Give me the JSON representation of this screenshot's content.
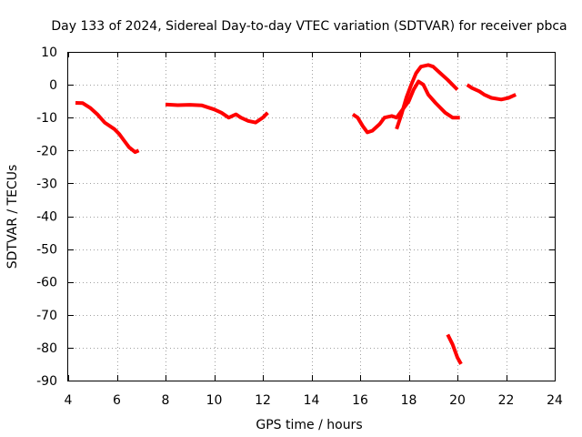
{
  "chart_data": {
    "type": "line",
    "title": "Day 133 of 2024, Sidereal Day-to-day VTEC variation (SDTVAR) for receiver pbca",
    "xlabel": "GPS time / hours",
    "ylabel": "SDTVAR / TECUs",
    "xlim": [
      4,
      24
    ],
    "ylim": [
      -90,
      10
    ],
    "xticks": [
      4,
      6,
      8,
      10,
      12,
      14,
      16,
      18,
      20,
      22,
      24
    ],
    "yticks": [
      10,
      0,
      -10,
      -20,
      -30,
      -40,
      -50,
      -60,
      -70,
      -80,
      -90
    ],
    "grid": true,
    "color": "#ff0000",
    "series": [
      {
        "name": "arc-1",
        "points": [
          [
            4.3,
            -5.5
          ],
          [
            4.6,
            -5.6
          ],
          [
            4.9,
            -7
          ],
          [
            5.2,
            -9
          ],
          [
            5.5,
            -11.5
          ],
          [
            5.9,
            -13.5
          ],
          [
            6.1,
            -15
          ],
          [
            6.3,
            -17
          ],
          [
            6.5,
            -19
          ],
          [
            6.75,
            -20.5
          ],
          [
            6.9,
            -20
          ]
        ]
      },
      {
        "name": "arc-2",
        "points": [
          [
            8.0,
            -6
          ],
          [
            8.5,
            -6.2
          ],
          [
            9.0,
            -6.1
          ],
          [
            9.5,
            -6.3
          ],
          [
            10.0,
            -7.5
          ],
          [
            10.3,
            -8.5
          ],
          [
            10.6,
            -10
          ],
          [
            10.9,
            -9
          ],
          [
            11.1,
            -10
          ],
          [
            11.4,
            -11
          ],
          [
            11.7,
            -11.5
          ],
          [
            12.0,
            -10
          ],
          [
            12.2,
            -8.5
          ]
        ]
      },
      {
        "name": "arc-3",
        "points": [
          [
            15.7,
            -9
          ],
          [
            15.9,
            -10
          ],
          [
            16.1,
            -12.5
          ],
          [
            16.3,
            -14.5
          ],
          [
            16.5,
            -14
          ],
          [
            16.8,
            -12
          ],
          [
            17.0,
            -10
          ],
          [
            17.3,
            -9.5
          ],
          [
            17.5,
            -10
          ],
          [
            17.7,
            -8
          ],
          [
            18.0,
            -5
          ],
          [
            18.2,
            -1.5
          ],
          [
            18.4,
            1
          ],
          [
            18.6,
            0
          ],
          [
            18.8,
            -3
          ],
          [
            19.1,
            -5.5
          ],
          [
            19.5,
            -8.5
          ],
          [
            19.8,
            -10
          ],
          [
            20.1,
            -10
          ]
        ]
      },
      {
        "name": "arc-4",
        "points": [
          [
            17.5,
            -13.5
          ],
          [
            17.7,
            -9
          ],
          [
            17.9,
            -4
          ],
          [
            18.1,
            0
          ],
          [
            18.3,
            3.5
          ],
          [
            18.5,
            5.5
          ],
          [
            18.8,
            6
          ],
          [
            19.0,
            5.5
          ],
          [
            19.3,
            3.5
          ],
          [
            19.6,
            1.5
          ],
          [
            20.0,
            -1.5
          ]
        ]
      },
      {
        "name": "arc-5",
        "points": [
          [
            20.4,
            0
          ],
          [
            20.6,
            -1
          ],
          [
            20.9,
            -2
          ],
          [
            21.1,
            -3
          ],
          [
            21.4,
            -4
          ],
          [
            21.8,
            -4.5
          ],
          [
            22.1,
            -4
          ],
          [
            22.4,
            -3
          ]
        ]
      },
      {
        "name": "arc-6",
        "points": [
          [
            19.6,
            -76
          ],
          [
            19.8,
            -79
          ],
          [
            20.0,
            -83
          ],
          [
            20.15,
            -85
          ]
        ]
      }
    ]
  }
}
